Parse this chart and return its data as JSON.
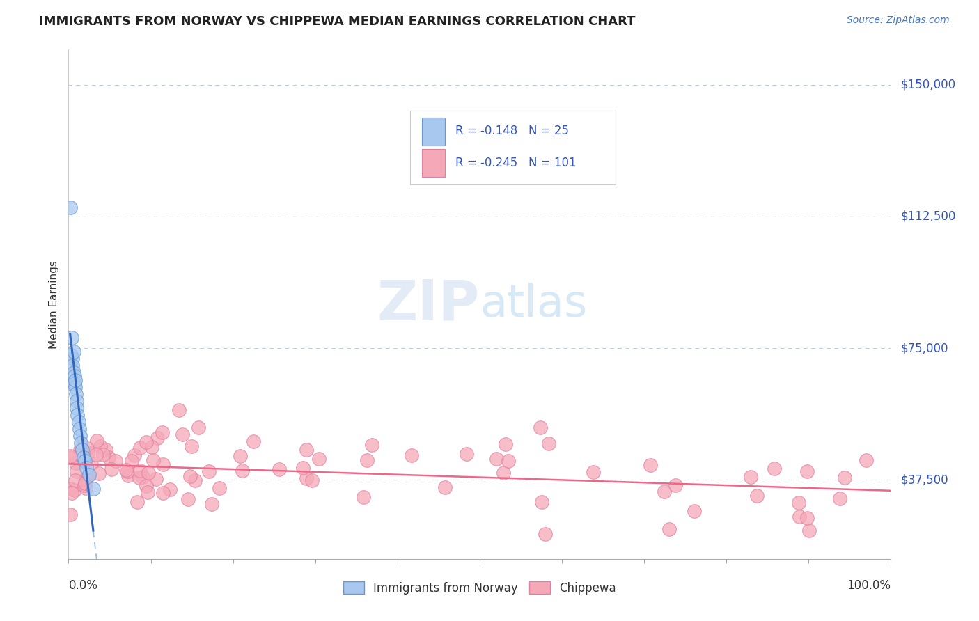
{
  "title": "IMMIGRANTS FROM NORWAY VS CHIPPEWA MEDIAN EARNINGS CORRELATION CHART",
  "source_text": "Source: ZipAtlas.com",
  "ylabel": "Median Earnings",
  "xlim": [
    0,
    1.0
  ],
  "ylim": [
    15000,
    160000
  ],
  "yticks": [
    37500,
    75000,
    112500,
    150000
  ],
  "ytick_labels": [
    "$37,500",
    "$75,000",
    "$112,500",
    "$150,000"
  ],
  "xtick_labels": [
    "0.0%",
    "100.0%"
  ],
  "background_color": "#ffffff",
  "grid_color": "#b8cce4",
  "norway_color": "#a8c8f0",
  "norway_edge": "#6699cc",
  "chippewa_color": "#f5a8b8",
  "chippewa_edge": "#e080a0",
  "norway_line_color": "#3366bb",
  "chippewa_line_color": "#ee6688",
  "dashed_line_color": "#99bbdd",
  "legend_norway_label": "Immigrants from Norway",
  "legend_chippewa_label": "Chippewa",
  "norway_R": "-0.148",
  "norway_N": "25",
  "chippewa_R": "-0.245",
  "chippewa_N": "101",
  "label_color": "#3355bb",
  "title_color": "#222222",
  "source_color": "#4477cc"
}
